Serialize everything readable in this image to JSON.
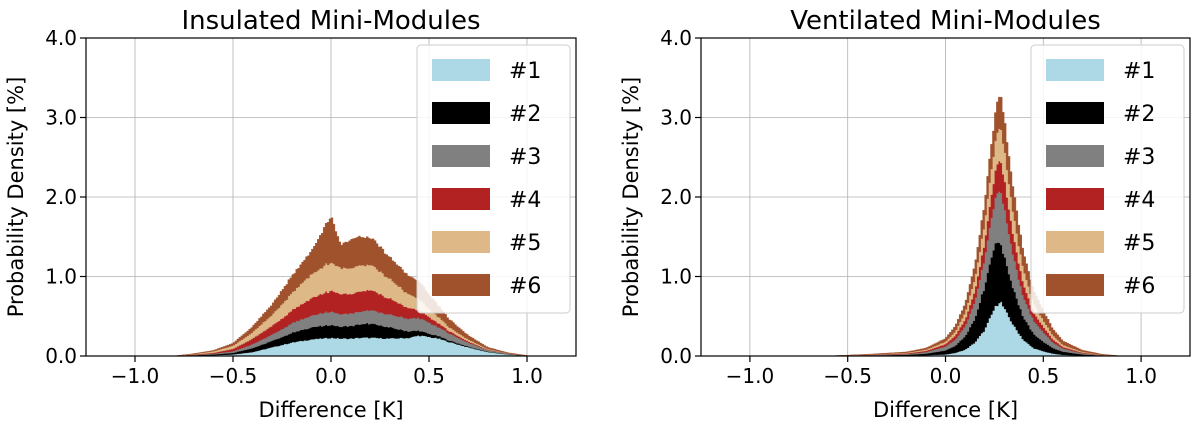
{
  "chart_data": [
    {
      "type": "area",
      "subtype": "stacked-step-histogram",
      "title": "Insulated Mini-Modules",
      "xlabel": "Difference [K]",
      "ylabel": "Probability Density [%]",
      "xlim": [
        -1.25,
        1.25
      ],
      "ylim": [
        0,
        4.0
      ],
      "xticks": [
        "−1.0",
        "−0.5",
        "0.0",
        "0.5",
        "1.0"
      ],
      "yticks": [
        "0.0",
        "1.0",
        "2.0",
        "3.0",
        "4.0"
      ],
      "grid": true,
      "legend_position": "top-right",
      "x": [
        -0.8,
        -0.7,
        -0.6,
        -0.5,
        -0.4,
        -0.3,
        -0.2,
        -0.1,
        0.0,
        0.05,
        0.1,
        0.15,
        0.2,
        0.3,
        0.4,
        0.45,
        0.5,
        0.55,
        0.6,
        0.7,
        0.8,
        0.9,
        1.0
      ],
      "series": [
        {
          "name": "#1",
          "color": "#add8e6",
          "values": [
            0,
            0.005,
            0.01,
            0.02,
            0.05,
            0.11,
            0.17,
            0.21,
            0.23,
            0.22,
            0.22,
            0.23,
            0.23,
            0.22,
            0.23,
            0.26,
            0.24,
            0.22,
            0.18,
            0.11,
            0.05,
            0.02,
            0.005
          ]
        },
        {
          "name": "#2",
          "color": "#000000",
          "values": [
            0,
            0.005,
            0.01,
            0.02,
            0.05,
            0.08,
            0.12,
            0.15,
            0.16,
            0.15,
            0.16,
            0.17,
            0.18,
            0.14,
            0.08,
            0.06,
            0.04,
            0.03,
            0.02,
            0.01,
            0.005,
            0.002,
            0
          ]
        },
        {
          "name": "#3",
          "color": "#808080",
          "values": [
            0,
            0.005,
            0.01,
            0.02,
            0.05,
            0.08,
            0.12,
            0.15,
            0.17,
            0.16,
            0.16,
            0.16,
            0.17,
            0.16,
            0.16,
            0.16,
            0.14,
            0.11,
            0.09,
            0.05,
            0.02,
            0.01,
            0
          ]
        },
        {
          "name": "#4",
          "color": "#b22222",
          "values": [
            0,
            0.005,
            0.01,
            0.03,
            0.07,
            0.11,
            0.16,
            0.22,
            0.26,
            0.25,
            0.24,
            0.25,
            0.25,
            0.2,
            0.13,
            0.1,
            0.07,
            0.05,
            0.03,
            0.015,
            0.005,
            0.002,
            0
          ]
        },
        {
          "name": "#5",
          "color": "#deb887",
          "values": [
            0,
            0.005,
            0.02,
            0.04,
            0.08,
            0.14,
            0.22,
            0.3,
            0.36,
            0.33,
            0.32,
            0.33,
            0.32,
            0.25,
            0.17,
            0.14,
            0.1,
            0.08,
            0.05,
            0.025,
            0.01,
            0.003,
            0
          ]
        },
        {
          "name": "#6",
          "color": "#a0522d",
          "values": [
            0,
            0.005,
            0.01,
            0.03,
            0.07,
            0.13,
            0.21,
            0.29,
            0.58,
            0.29,
            0.36,
            0.36,
            0.34,
            0.27,
            0.23,
            0.22,
            0.18,
            0.14,
            0.1,
            0.05,
            0.02,
            0.006,
            0
          ]
        }
      ]
    },
    {
      "type": "area",
      "subtype": "stacked-step-histogram",
      "title": "Ventilated Mini-Modules",
      "xlabel": "Difference [K]",
      "ylabel": "Probability Density [%]",
      "xlim": [
        -1.25,
        1.25
      ],
      "ylim": [
        0,
        4.0
      ],
      "xticks": [
        "−1.0",
        "−0.5",
        "0.0",
        "0.5",
        "1.0"
      ],
      "yticks": [
        "0.0",
        "1.0",
        "2.0",
        "3.0",
        "4.0"
      ],
      "grid": true,
      "legend_position": "top-right",
      "x": [
        -0.6,
        -0.4,
        -0.2,
        -0.1,
        0.0,
        0.05,
        0.1,
        0.15,
        0.2,
        0.25,
        0.28,
        0.3,
        0.35,
        0.4,
        0.45,
        0.5,
        0.55,
        0.6,
        0.7,
        0.8,
        0.9
      ],
      "series": [
        {
          "name": "#1",
          "color": "#add8e6",
          "values": [
            0,
            0.002,
            0.005,
            0.01,
            0.02,
            0.04,
            0.08,
            0.17,
            0.33,
            0.6,
            0.7,
            0.6,
            0.38,
            0.2,
            0.1,
            0.06,
            0.03,
            0.015,
            0.005,
            0.001,
            0
          ]
        },
        {
          "name": "#2",
          "color": "#000000",
          "values": [
            0,
            0.005,
            0.01,
            0.02,
            0.05,
            0.09,
            0.17,
            0.3,
            0.55,
            0.8,
            0.75,
            0.65,
            0.45,
            0.28,
            0.18,
            0.12,
            0.07,
            0.04,
            0.015,
            0.005,
            0
          ]
        },
        {
          "name": "#3",
          "color": "#808080",
          "values": [
            0,
            0.005,
            0.01,
            0.02,
            0.05,
            0.08,
            0.13,
            0.22,
            0.36,
            0.55,
            0.68,
            0.6,
            0.4,
            0.25,
            0.17,
            0.12,
            0.07,
            0.04,
            0.015,
            0.005,
            0
          ]
        },
        {
          "name": "#4",
          "color": "#b22222",
          "values": [
            0,
            0.003,
            0.008,
            0.015,
            0.03,
            0.05,
            0.08,
            0.13,
            0.2,
            0.32,
            0.4,
            0.36,
            0.25,
            0.16,
            0.1,
            0.07,
            0.04,
            0.02,
            0.008,
            0.002,
            0
          ]
        },
        {
          "name": "#5",
          "color": "#deb887",
          "values": [
            0,
            0.003,
            0.008,
            0.015,
            0.03,
            0.05,
            0.09,
            0.15,
            0.24,
            0.36,
            0.42,
            0.38,
            0.27,
            0.18,
            0.12,
            0.08,
            0.05,
            0.025,
            0.01,
            0.003,
            0
          ]
        },
        {
          "name": "#6",
          "color": "#a0522d",
          "values": [
            0,
            0.004,
            0.01,
            0.02,
            0.04,
            0.07,
            0.11,
            0.17,
            0.25,
            0.33,
            0.42,
            0.38,
            0.3,
            0.22,
            0.16,
            0.12,
            0.08,
            0.05,
            0.02,
            0.007,
            0
          ]
        }
      ]
    }
  ]
}
